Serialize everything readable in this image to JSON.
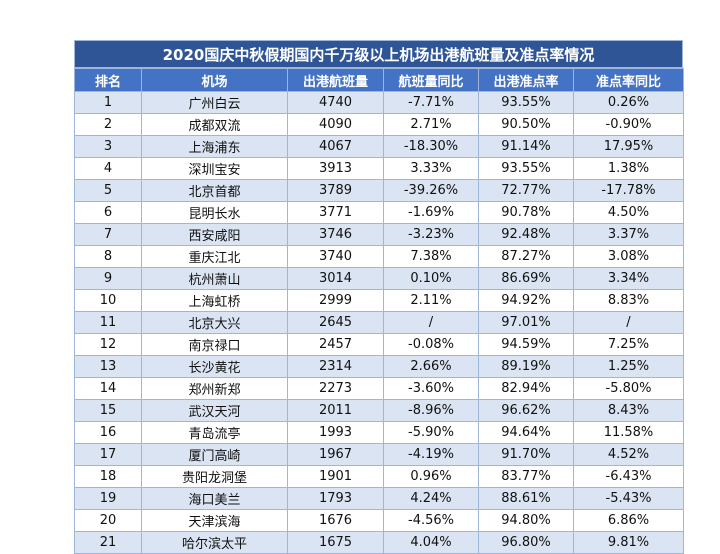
{
  "title": "2020国庆中秋假期国内千万级以上机场出港航班量及准点率情况",
  "columns": [
    "排名",
    "机场",
    "出港航班量",
    "航班量同比",
    "出港准点率",
    "准点率同比"
  ],
  "rows": [
    [
      "1",
      "广州白云",
      "4740",
      "-7.71%",
      "93.55%",
      "0.26%"
    ],
    [
      "2",
      "成都双流",
      "4090",
      "2.71%",
      "90.50%",
      "-0.90%"
    ],
    [
      "3",
      "上海浦东",
      "4067",
      "-18.30%",
      "91.14%",
      "17.95%"
    ],
    [
      "4",
      "深圳宝安",
      "3913",
      "3.33%",
      "93.55%",
      "1.38%"
    ],
    [
      "5",
      "北京首都",
      "3789",
      "-39.26%",
      "72.77%",
      "-17.78%"
    ],
    [
      "6",
      "昆明长水",
      "3771",
      "-1.69%",
      "90.78%",
      "4.50%"
    ],
    [
      "7",
      "西安咸阳",
      "3746",
      "-3.23%",
      "92.48%",
      "3.37%"
    ],
    [
      "8",
      "重庆江北",
      "3740",
      "7.38%",
      "87.27%",
      "3.08%"
    ],
    [
      "9",
      "杭州萧山",
      "3014",
      "0.10%",
      "86.69%",
      "3.34%"
    ],
    [
      "10",
      "上海虹桥",
      "2999",
      "2.11%",
      "94.92%",
      "8.83%"
    ],
    [
      "11",
      "北京大兴",
      "2645",
      "/",
      "97.01%",
      "/"
    ],
    [
      "12",
      "南京禄口",
      "2457",
      "-0.08%",
      "94.59%",
      "7.25%"
    ],
    [
      "13",
      "长沙黄花",
      "2314",
      "2.66%",
      "89.19%",
      "1.25%"
    ],
    [
      "14",
      "郑州新郑",
      "2273",
      "-3.60%",
      "82.94%",
      "-5.80%"
    ],
    [
      "15",
      "武汉天河",
      "2011",
      "-8.96%",
      "96.62%",
      "8.43%"
    ],
    [
      "16",
      "青岛流亭",
      "1993",
      "-5.90%",
      "94.64%",
      "11.58%"
    ],
    [
      "17",
      "厦门高崎",
      "1967",
      "-4.19%",
      "91.70%",
      "4.52%"
    ],
    [
      "18",
      "贵阳龙洞堡",
      "1901",
      "0.96%",
      "83.77%",
      "-6.43%"
    ],
    [
      "19",
      "海口美兰",
      "1793",
      "4.24%",
      "88.61%",
      "-5.43%"
    ],
    [
      "20",
      "天津滨海",
      "1676",
      "-4.56%",
      "94.80%",
      "6.86%"
    ],
    [
      "21",
      "哈尔滨太平",
      "1675",
      "4.04%",
      "96.80%",
      "9.81%"
    ]
  ]
}
